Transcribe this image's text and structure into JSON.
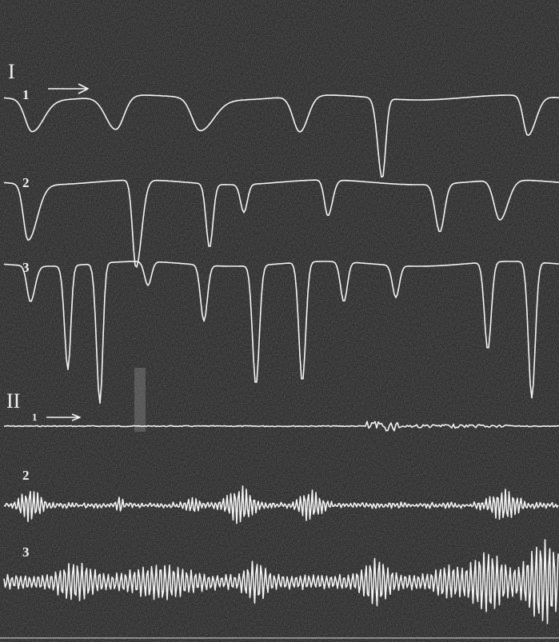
{
  "panels": [
    {
      "label": "I",
      "traces": [
        {
          "label": "1"
        },
        {
          "label": "2"
        },
        {
          "label": "3"
        }
      ]
    },
    {
      "label": "II",
      "traces": [
        {
          "label": "1"
        },
        {
          "label": "2"
        },
        {
          "label": "3"
        }
      ]
    }
  ]
}
